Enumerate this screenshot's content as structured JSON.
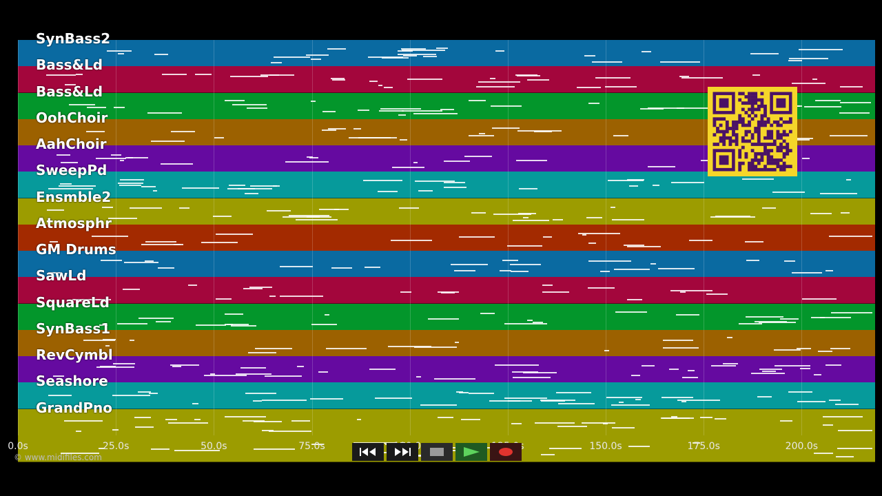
{
  "tracks": [
    {
      "name": "SynBass2",
      "color": "#0a6aa1"
    },
    {
      "name": "Bass&Ld",
      "color": "#a3063c"
    },
    {
      "name": "Bass&Ld",
      "color": "#03962b"
    },
    {
      "name": "OohChoir",
      "color": "#9c6100"
    },
    {
      "name": "AahChoir",
      "color": "#650aa0"
    },
    {
      "name": "SweepPd",
      "color": "#069a9b"
    },
    {
      "name": "Ensmble2",
      "color": "#9c9c00"
    },
    {
      "name": "Atmosphr",
      "color": "#a32a00"
    },
    {
      "name": "GM Drums",
      "color": "#0a6aa1"
    },
    {
      "name": "SawLd",
      "color": "#a3063c"
    },
    {
      "name": "SquareLd",
      "color": "#03962b"
    },
    {
      "name": "SynBass1",
      "color": "#9c6100"
    },
    {
      "name": "RevCymbl",
      "color": "#650aa0"
    },
    {
      "name": "Seashore",
      "color": "#069a9b"
    },
    {
      "name": "GrandPno",
      "color": "#9c9c00"
    }
  ],
  "extra_lane_color": "#9c9c00",
  "timeline": {
    "tick_labels": [
      "0.0s",
      "25.0s",
      "50.0s",
      "75.0s",
      "100.0s",
      "125.0s",
      "150.0s",
      "175.0s",
      "200.0s"
    ],
    "tick_seconds": [
      0,
      25,
      50,
      75,
      100,
      125,
      150,
      175,
      200
    ],
    "max_seconds": 218.75
  },
  "credit": "© www.midifiles.com",
  "controls": {
    "rewind_icon": "rewind-icon",
    "forward_icon": "fast-forward-icon",
    "stop_icon": "stop-icon",
    "play_icon": "play-icon",
    "record_icon": "record-icon"
  },
  "colors": {
    "background": "#000000",
    "qr_background": "#f5d62a",
    "qr_modules": "#4a1266",
    "play_accent": "#2e7d32",
    "record_accent": "#d32f2f"
  }
}
